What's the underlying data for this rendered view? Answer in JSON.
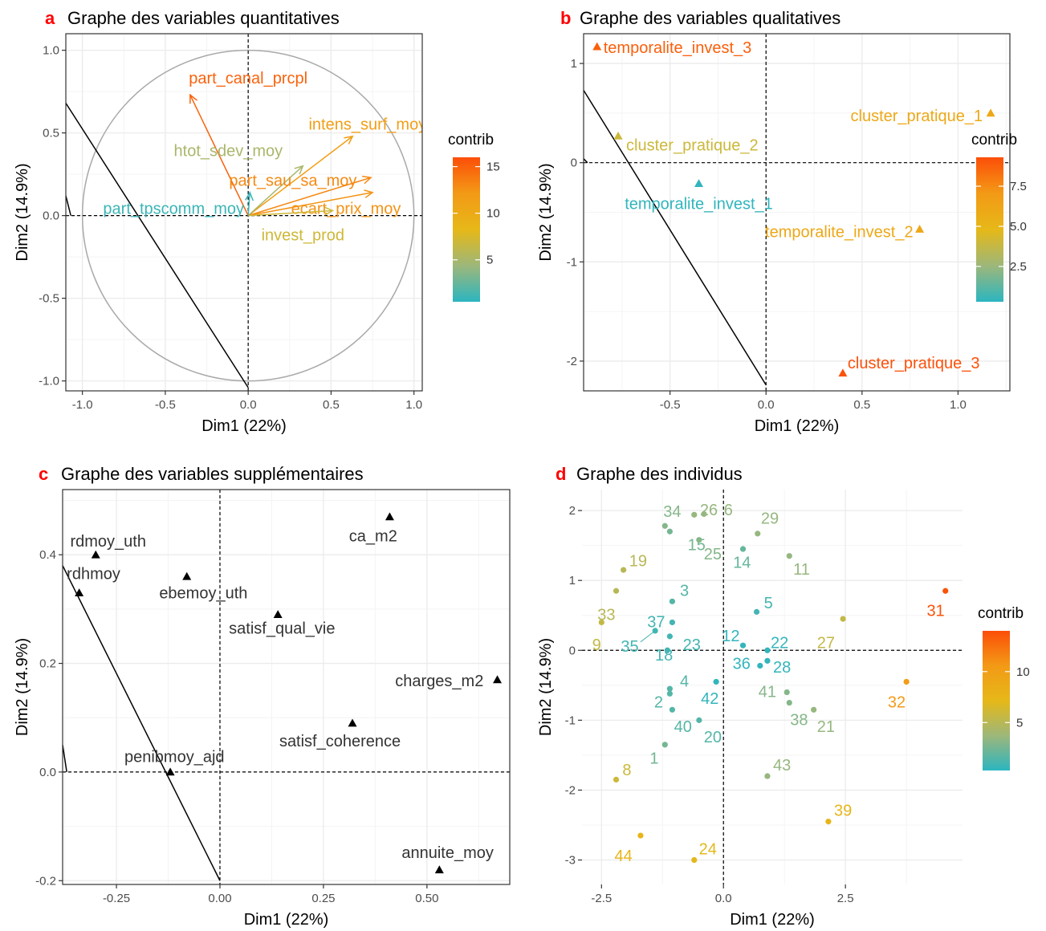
{
  "colors": {
    "gradient": [
      "#2cb5c0",
      "#9db77a",
      "#e6b818",
      "#f39a16",
      "#fc4e08"
    ],
    "grid": "#ebebeb",
    "panel_border": "#333333",
    "circle": "#a9a9a9",
    "black": "#000000",
    "letter": "#ff0000"
  },
  "panels": {
    "a": {
      "letter": "a",
      "title": "Graphe des variables quantitatives"
    },
    "b": {
      "letter": "b",
      "title": "Graphe des variables qualitatives"
    },
    "c": {
      "letter": "c",
      "title": "Graphe des variables supplémentaires"
    },
    "d": {
      "letter": "d",
      "title": "Graphe des individus"
    }
  },
  "chart_data": [
    {
      "id": "a",
      "type": "scatter",
      "subtype": "correlation-circle",
      "xlabel": "Dim1 (22%)",
      "ylabel": "Dim2 (14.9%)",
      "xlim": [
        -1.1,
        1.05
      ],
      "ylim": [
        -1.06,
        1.1
      ],
      "xticks": [
        -1.0,
        -0.5,
        0.0,
        0.5,
        1.0
      ],
      "yticks": [
        -1.0,
        -0.5,
        0.0,
        0.5,
        1.0
      ],
      "xtick_labels": [
        "-1.0",
        "-0.5",
        "0.0",
        "0.5",
        "1.0"
      ],
      "ytick_labels": [
        "-1.0",
        "-0.5",
        "0.0",
        "0.5",
        "1.0"
      ],
      "legend": {
        "title": "contrib",
        "range": [
          0.5,
          16
        ],
        "ticks": [
          5,
          10,
          15
        ],
        "tick_labels": [
          "5",
          "10",
          "15"
        ]
      },
      "line": {
        "from": [
          -1.1,
          0.68
        ],
        "to": [
          0.0,
          -1.04
        ]
      },
      "line_stub": {
        "from": [
          -1.1,
          0.12
        ],
        "to": [
          -1.07,
          0.0
        ]
      },
      "arrows": [
        {
          "name": "part_canal_prcpl",
          "x": -0.35,
          "y": 0.73,
          "contrib": 15.0,
          "lx": 0.0,
          "ly": 0.8
        },
        {
          "name": "intens_surf_moy",
          "x": 0.63,
          "y": 0.48,
          "contrib": 11.5,
          "lx": 0.72,
          "ly": 0.52
        },
        {
          "name": "htot_sdev_moy",
          "x": 0.33,
          "y": 0.3,
          "contrib": 5.0,
          "lx": -0.12,
          "ly": 0.36
        },
        {
          "name": "part_sau_sa_moy",
          "x": 0.74,
          "y": 0.23,
          "contrib": 13.0,
          "lx": 0.27,
          "ly": 0.18
        },
        {
          "name": "ecart_prix_moy",
          "x": 0.75,
          "y": 0.14,
          "contrib": 12.5,
          "lx": 0.59,
          "ly": 0.01
        },
        {
          "name": "invest_prod",
          "x": 0.51,
          "y": 0.03,
          "contrib": 7.0,
          "lx": 0.33,
          "ly": -0.15
        },
        {
          "name": "part_tpscomm_moy",
          "x": 0.01,
          "y": 0.14,
          "contrib": 1.0,
          "lx": -0.45,
          "ly": 0.01
        }
      ]
    },
    {
      "id": "b",
      "type": "scatter",
      "xlabel": "Dim1 (22%)",
      "ylabel": "Dim2 (14.9%)",
      "xlim": [
        -0.95,
        1.27
      ],
      "ylim": [
        -2.3,
        1.3
      ],
      "xticks": [
        -0.5,
        0.0,
        0.5,
        1.0
      ],
      "yticks": [
        -2,
        -1,
        0,
        1
      ],
      "xtick_labels": [
        "-0.5",
        "0.0",
        "0.5",
        "1.0"
      ],
      "ytick_labels": [
        "-2",
        "-1",
        "0",
        "1"
      ],
      "legend": {
        "title": "contrib",
        "range": [
          0.3,
          9.3
        ],
        "ticks": [
          2.5,
          5.0,
          7.5
        ],
        "tick_labels": [
          "2.5",
          "5.0",
          "7.5"
        ]
      },
      "line": {
        "from": [
          -0.95,
          0.73
        ],
        "to": [
          0.0,
          -2.24
        ]
      },
      "line_stub": {
        "from": [
          -0.95,
          0.04
        ],
        "to": [
          -0.93,
          0.0
        ]
      },
      "points": [
        {
          "name": "temporalite_invest_3",
          "x": -0.88,
          "y": 1.17,
          "contrib": 8.8
        },
        {
          "name": "cluster_pratique_1",
          "x": 1.17,
          "y": 0.5,
          "contrib": 6.0
        },
        {
          "name": "cluster_pratique_2",
          "x": -0.77,
          "y": 0.27,
          "contrib": 4.0
        },
        {
          "name": "temporalite_invest_1",
          "x": -0.35,
          "y": -0.21,
          "contrib": 0.4
        },
        {
          "name": "temporalite_invest_2",
          "x": 0.8,
          "y": -0.67,
          "contrib": 6.0
        },
        {
          "name": "cluster_pratique_3",
          "x": 0.4,
          "y": -2.12,
          "contrib": 9.2
        }
      ]
    },
    {
      "id": "c",
      "type": "scatter",
      "xlabel": "Dim1 (22%)",
      "ylabel": "Dim2 (14.9%)",
      "xlim": [
        -0.38,
        0.7
      ],
      "ylim": [
        -0.207,
        0.52
      ],
      "xticks": [
        -0.25,
        0.0,
        0.25,
        0.5
      ],
      "yticks": [
        -0.2,
        0.0,
        0.2,
        0.4
      ],
      "xtick_labels": [
        "-0.25",
        "0.00",
        "0.25",
        "0.50"
      ],
      "ytick_labels": [
        "-0.2",
        "0.0",
        "0.2",
        "0.4"
      ],
      "line": {
        "from": [
          -0.38,
          0.38
        ],
        "to": [
          0.0,
          -0.2
        ]
      },
      "line_stub": {
        "from": [
          -0.38,
          0.05
        ],
        "to": [
          -0.37,
          0.0
        ]
      },
      "points": [
        {
          "name": "rdmoy_uth",
          "x": -0.3,
          "y": 0.4,
          "lx": -0.27,
          "ly": 0.415
        },
        {
          "name": "rdhmoy",
          "x": -0.34,
          "y": 0.33,
          "lx": -0.37,
          "ly": 0.355,
          "anchor": "start"
        },
        {
          "name": "ebemoy_uth",
          "x": -0.08,
          "y": 0.36,
          "lx": -0.04,
          "ly": 0.32
        },
        {
          "name": "ca_m2",
          "x": 0.41,
          "y": 0.47,
          "lx": 0.37,
          "ly": 0.425
        },
        {
          "name": "satisf_qual_vie",
          "x": 0.14,
          "y": 0.29,
          "lx": 0.15,
          "ly": 0.255
        },
        {
          "name": "charges_m2",
          "x": 0.67,
          "y": 0.17,
          "lx": 0.53,
          "ly": 0.158
        },
        {
          "name": "satisf_coherence",
          "x": 0.32,
          "y": 0.09,
          "lx": 0.29,
          "ly": 0.047
        },
        {
          "name": "penibmoy_ajd",
          "x": -0.12,
          "y": 0.0,
          "lx": -0.11,
          "ly": 0.018
        },
        {
          "name": "annuite_moy",
          "x": 0.53,
          "y": -0.18,
          "lx": 0.55,
          "ly": -0.158
        }
      ]
    },
    {
      "id": "d",
      "type": "scatter",
      "xlabel": "Dim1 (22%)",
      "ylabel": "Dim2 (14.9%)",
      "xlim": [
        -2.9,
        4.9
      ],
      "ylim": [
        -3.35,
        2.3
      ],
      "xticks": [
        -2.5,
        0.0,
        2.5
      ],
      "yticks": [
        -3,
        -2,
        -1,
        0,
        1,
        2
      ],
      "xtick_labels": [
        "-2.5",
        "0.0",
        "2.5"
      ],
      "ytick_labels": [
        "-3",
        "-2",
        "-1",
        "0",
        "1",
        "2"
      ],
      "legend": {
        "title": "contrib",
        "range": [
          0.3,
          14
        ],
        "ticks": [
          5,
          10
        ],
        "tick_labels": [
          "5",
          "10"
        ]
      },
      "points": [
        {
          "name": "34",
          "x": -1.2,
          "y": 1.78,
          "contrib": 3.0,
          "lx": -1.05,
          "ly": 1.98
        },
        {
          "name": "26",
          "x": -0.6,
          "y": 1.94,
          "contrib": 3.5,
          "lx": -0.3,
          "ly": 2.0
        },
        {
          "name": "6",
          "x": -0.4,
          "y": 1.95,
          "contrib": 3.5,
          "lx": 0.1,
          "ly": 2.0
        },
        {
          "name": "29",
          "x": 0.7,
          "y": 1.67,
          "contrib": 3.5,
          "lx": 0.95,
          "ly": 1.88
        },
        {
          "name": "15",
          "x": -1.1,
          "y": 1.7,
          "contrib": 2.5,
          "lx": -0.55,
          "ly": 1.5
        },
        {
          "name": "25",
          "x": -0.5,
          "y": 1.58,
          "contrib": 3.0,
          "lx": -0.22,
          "ly": 1.37
        },
        {
          "name": "14",
          "x": 0.4,
          "y": 1.45,
          "contrib": 2.0,
          "lx": 0.38,
          "ly": 1.25
        },
        {
          "name": "11",
          "x": 1.35,
          "y": 1.35,
          "contrib": 3.5,
          "lx": 1.6,
          "ly": 1.15
        },
        {
          "name": "19",
          "x": -2.05,
          "y": 1.15,
          "contrib": 5.0,
          "lx": -1.75,
          "ly": 1.27
        },
        {
          "name": "3",
          "x": -1.05,
          "y": 0.7,
          "contrib": 1.5,
          "lx": -0.8,
          "ly": 0.85
        },
        {
          "name": "5",
          "x": 0.68,
          "y": 0.55,
          "contrib": 1.0,
          "lx": 0.92,
          "ly": 0.67
        },
        {
          "name": "33",
          "x": -2.2,
          "y": 0.85,
          "contrib": 5.0,
          "lx": -2.4,
          "ly": 0.5
        },
        {
          "name": "31",
          "x": 4.55,
          "y": 0.85,
          "contrib": 13.8,
          "lx": 4.35,
          "ly": 0.56
        },
        {
          "name": "37",
          "x": -1.05,
          "y": 0.4,
          "contrib": 1.0,
          "lx": -1.38,
          "ly": 0.4
        },
        {
          "name": "12",
          "x": 0.4,
          "y": 0.07,
          "contrib": 0.5,
          "lx": 0.15,
          "ly": 0.2
        },
        {
          "name": "22",
          "x": 0.9,
          "y": 0.0,
          "contrib": 0.5,
          "lx": 1.15,
          "ly": 0.1
        },
        {
          "name": "27",
          "x": 2.45,
          "y": 0.45,
          "contrib": 5.5,
          "lx": 2.1,
          "ly": 0.1
        },
        {
          "name": "9",
          "x": -2.5,
          "y": 0.4,
          "contrib": 5.5,
          "lx": -2.6,
          "ly": 0.07
        },
        {
          "name": "35",
          "x": -1.4,
          "y": 0.28,
          "contrib": 1.0,
          "lx": -1.92,
          "ly": 0.05
        },
        {
          "name": "23",
          "x": -1.1,
          "y": 0.2,
          "contrib": 1.0,
          "lx": -0.65,
          "ly": 0.07
        },
        {
          "name": "18",
          "x": -1.15,
          "y": 0.0,
          "contrib": 1.0,
          "lx": -1.22,
          "ly": -0.08
        },
        {
          "name": "36",
          "x": 0.75,
          "y": -0.22,
          "contrib": 0.5,
          "lx": 0.37,
          "ly": -0.2
        },
        {
          "name": "28",
          "x": 0.9,
          "y": -0.15,
          "contrib": 0.5,
          "lx": 1.2,
          "ly": -0.25
        },
        {
          "name": "4",
          "x": -1.1,
          "y": -0.55,
          "contrib": 1.5,
          "lx": -0.8,
          "ly": -0.45
        },
        {
          "name": "2",
          "x": -1.1,
          "y": -0.62,
          "contrib": 1.5,
          "lx": -1.33,
          "ly": -0.75
        },
        {
          "name": "42",
          "x": -0.15,
          "y": -0.45,
          "contrib": 0.5,
          "lx": -0.28,
          "ly": -0.7
        },
        {
          "name": "41",
          "x": 1.3,
          "y": -0.6,
          "contrib": 3.0,
          "lx": 0.9,
          "ly": -0.6
        },
        {
          "name": "38",
          "x": 1.35,
          "y": -0.75,
          "contrib": 3.0,
          "lx": 1.55,
          "ly": -1.0
        },
        {
          "name": "21",
          "x": 1.85,
          "y": -0.85,
          "contrib": 3.5,
          "lx": 2.1,
          "ly": -1.1
        },
        {
          "name": "40",
          "x": -1.05,
          "y": -0.85,
          "contrib": 1.5,
          "lx": -0.83,
          "ly": -1.1
        },
        {
          "name": "20",
          "x": -0.5,
          "y": -1.0,
          "contrib": 1.5,
          "lx": -0.22,
          "ly": -1.25
        },
        {
          "name": "1",
          "x": -1.2,
          "y": -1.35,
          "contrib": 2.5,
          "lx": -1.42,
          "ly": -1.55
        },
        {
          "name": "43",
          "x": 0.9,
          "y": -1.8,
          "contrib": 3.5,
          "lx": 1.2,
          "ly": -1.65
        },
        {
          "name": "8",
          "x": -2.2,
          "y": -1.85,
          "contrib": 6.0,
          "lx": -1.98,
          "ly": -1.72
        },
        {
          "name": "32",
          "x": 3.75,
          "y": -0.45,
          "contrib": 10.5,
          "lx": 3.55,
          "ly": -0.75
        },
        {
          "name": "39",
          "x": 2.15,
          "y": -2.45,
          "contrib": 7.5,
          "lx": 2.45,
          "ly": -2.3
        },
        {
          "name": "44",
          "x": -1.7,
          "y": -2.65,
          "contrib": 7.5,
          "lx": -2.05,
          "ly": -2.95
        },
        {
          "name": "24",
          "x": -0.6,
          "y": -3.0,
          "contrib": 7.0,
          "lx": -0.32,
          "ly": -2.85
        }
      ]
    }
  ]
}
